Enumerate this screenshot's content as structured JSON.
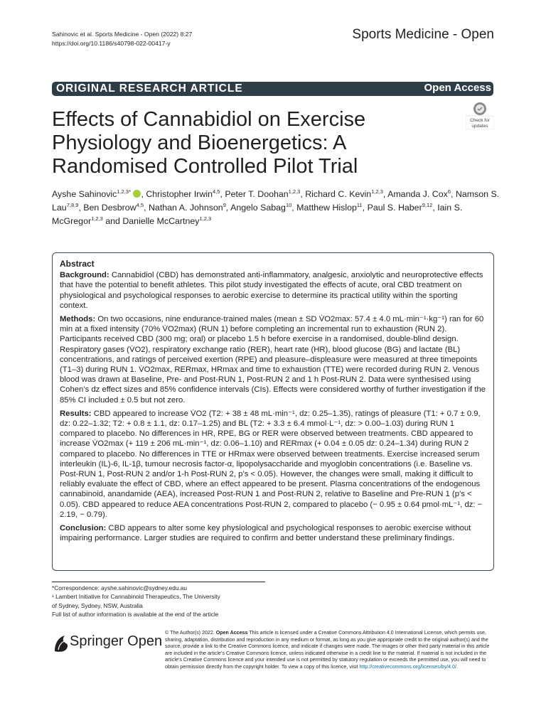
{
  "header": {
    "citation_line1": "Sahinovic et al. Sports Medicine - Open (2022) 8:27",
    "citation_line2": "https://doi.org/10.1186/s40798-022-00417-y",
    "journal": "Sports Medicine - Open"
  },
  "band": {
    "article_type": "ORIGINAL RESEARCH ARTICLE",
    "access": "Open Access"
  },
  "check_badge": {
    "line1": "Check for",
    "line2": "updates"
  },
  "title": "Effects of Cannabidiol on Exercise Physiology and Bioenergetics: A Randomised Controlled Pilot Trial",
  "authors": [
    {
      "name": "Ayshe Sahinovic",
      "sup": "1,2,3*",
      "orcid": true,
      "sep": ", "
    },
    {
      "name": "Christopher Irwin",
      "sup": "4,5",
      "sep": ", "
    },
    {
      "name": "Peter T. Doohan",
      "sup": "1,2,3",
      "sep": ", "
    },
    {
      "name": "Richard C. Kevin",
      "sup": "1,2,3",
      "sep": ", "
    },
    {
      "name": "Amanda J. Cox",
      "sup": "6",
      "sep": ", "
    },
    {
      "name": "Namson S. Lau",
      "sup": "7,8,9",
      "sep": ", "
    },
    {
      "name": "Ben Desbrow",
      "sup": "4,5",
      "sep": ", "
    },
    {
      "name": "Nathan A. Johnson",
      "sup": "9",
      "sep": ", "
    },
    {
      "name": "Angelo Sabag",
      "sup": "10",
      "sep": ", "
    },
    {
      "name": "Matthew Hislop",
      "sup": "11",
      "sep": ", "
    },
    {
      "name": "Paul S. Haber",
      "sup": "9,12",
      "sep": ", "
    },
    {
      "name": "Iain S. McGregor",
      "sup": "1,2,3",
      "sep": " and "
    },
    {
      "name": "Danielle McCartney",
      "sup": "1,2,3",
      "sep": ""
    }
  ],
  "abstract": {
    "heading": "Abstract",
    "background_label": "Background:",
    "background": "Cannabidiol (CBD) has demonstrated anti-inflammatory, analgesic, anxiolytic and neuroprotective effects that have the potential to benefit athletes. This pilot study investigated the effects of acute, oral CBD treatment on physiological and psychological responses to aerobic exercise to determine its practical utility within the sporting context.",
    "methods_label": "Methods:",
    "methods": "On two occasions, nine endurance-trained males (mean ± SD V̇O2max: 57.4 ± 4.0 mL·min⁻¹·kg⁻¹) ran for 60 min at a fixed intensity (70% V̇O2max) (RUN 1) before completing an incremental run to exhaustion (RUN 2). Participants received CBD (300 mg; oral) or placebo 1.5 h before exercise in a randomised, double-blind design. Respiratory gases (V̇O2), respiratory exchange ratio (RER), heart rate (HR), blood glucose (BG) and lactate (BL) concentrations, and ratings of perceived exertion (RPE) and pleasure–displeasure were measured at three timepoints (T1–3) during RUN 1. V̇O2max, RERmax, HRmax and time to exhaustion (TTE) were recorded during RUN 2. Venous blood was drawn at Baseline, Pre- and Post-RUN 1, Post-RUN 2 and 1 h Post-RUN 2. Data were synthesised using Cohen’s dz effect sizes and 85% confidence intervals (CIs). Effects were considered worthy of further investigation if the 85% CI included ± 0.5 but not zero.",
    "results_label": "Results:",
    "results": "CBD appeared to increase V̇O2 (T2: + 38 ± 48 mL·min⁻¹, dz: 0.25–1.35), ratings of pleasure (T1: + 0.7 ± 0.9, dz: 0.22–1.32; T2: + 0.8 ± 1.1, dz: 0.17–1.25) and BL (T2: + 3.3 ± 6.4 mmol·L⁻¹, dz: > 0.00–1.03) during RUN 1 compared to placebo. No differences in HR, RPE, BG or RER were observed between treatments. CBD appeared to increase V̇O2max (+ 119 ± 206 mL·min⁻¹, dz: 0.06–1.10) and RERmax (+ 0.04 ± 0.05 dz: 0.24–1.34) during RUN 2 compared to placebo. No differences in TTE or HRmax were observed between treatments. Exercise increased serum interleukin (IL)-6, IL-1β, tumour necrosis factor-α, lipopolysaccharide and myoglobin concentrations (i.e. Baseline vs. Post-RUN 1, Post-RUN 2 and/or 1-h Post-RUN 2, p’s < 0.05). However, the changes were small, making it difficult to reliably evaluate the effect of CBD, where an effect appeared to be present. Plasma concentrations of the endogenous cannabinoid, anandamide (AEA), increased Post-RUN 1 and Post-RUN 2, relative to Baseline and Pre-RUN 1 (p’s < 0.05). CBD appeared to reduce AEA concentrations Post-RUN 2, compared to placebo (− 0.95 ± 0.64 pmol·mL⁻¹, dz: − 2.19, − 0.79).",
    "conclusion_label": "Conclusion:",
    "conclusion": "CBD appears to alter some key physiological and psychological responses to aerobic exercise without impairing performance. Larger studies are required to confirm and better understand these preliminary findings."
  },
  "footnotes": [
    "*Correspondence: ayshe.sahinovic@sydney.edu.au",
    "¹ Lambert Initiative for Cannabinoid Therapeutics, The University",
    "of Sydney, Sydney, NSW, Australia",
    "Full list of author information is available at the end of the article"
  ],
  "publisher": {
    "name_bold": "Springer",
    "name_light": "Open",
    "icon": "springer-horse-icon"
  },
  "license": {
    "lead": "© The Author(s) 2022.",
    "oa": "Open Access",
    "text": "This article is licensed under a Creative Commons Attribution 4.0 International License, which permits use, sharing, adaptation, distribution and reproduction in any medium or format, as long as you give appropriate credit to the original author(s) and the source, provide a link to the Creative Commons licence, and indicate if changes were made. The images or other third party material in this article are included in the article’s Creative Commons licence, unless indicated otherwise in a credit line to the material. If material is not included in the article’s Creative Commons licence and your intended use is not permitted by statutory regulation or exceeds the permitted use, you will need to obtain permission directly from the copyright holder. To view a copy of this licence, visit",
    "url": "http://creativecommons.org/licenses/by/4.0/",
    "end": "."
  }
}
